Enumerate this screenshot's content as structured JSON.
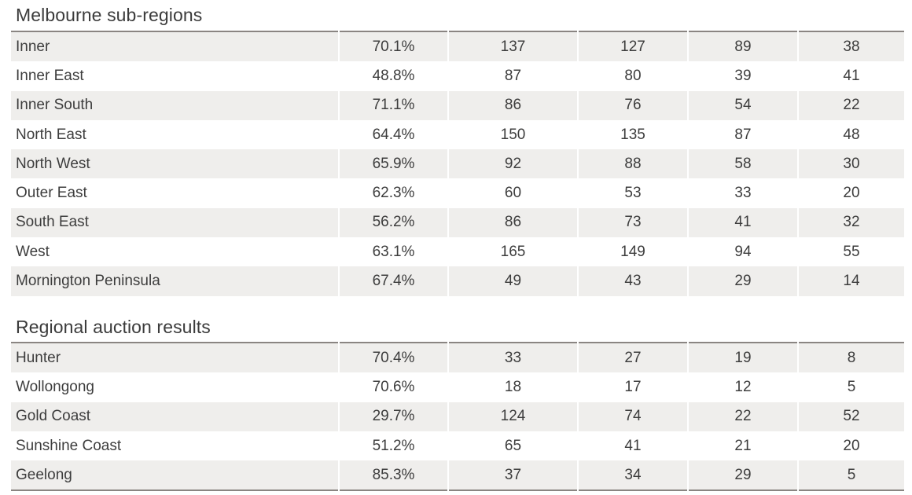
{
  "melbourne": {
    "title": "Melbourne sub-regions",
    "rows": [
      {
        "name": "Inner",
        "pct": "70.1%",
        "v1": "137",
        "v2": "127",
        "v3": "89",
        "v4": "38"
      },
      {
        "name": "Inner East",
        "pct": "48.8%",
        "v1": "87",
        "v2": "80",
        "v3": "39",
        "v4": "41"
      },
      {
        "name": "Inner South",
        "pct": "71.1%",
        "v1": "86",
        "v2": "76",
        "v3": "54",
        "v4": "22"
      },
      {
        "name": "North East",
        "pct": "64.4%",
        "v1": "150",
        "v2": "135",
        "v3": "87",
        "v4": "48"
      },
      {
        "name": "North West",
        "pct": "65.9%",
        "v1": "92",
        "v2": "88",
        "v3": "58",
        "v4": "30"
      },
      {
        "name": "Outer East",
        "pct": "62.3%",
        "v1": "60",
        "v2": "53",
        "v3": "33",
        "v4": "20"
      },
      {
        "name": "South East",
        "pct": "56.2%",
        "v1": "86",
        "v2": "73",
        "v3": "41",
        "v4": "32"
      },
      {
        "name": "West",
        "pct": "63.1%",
        "v1": "165",
        "v2": "149",
        "v3": "94",
        "v4": "55"
      },
      {
        "name": "Mornington Peninsula",
        "pct": "67.4%",
        "v1": "49",
        "v2": "43",
        "v3": "29",
        "v4": "14"
      }
    ]
  },
  "regional": {
    "title": "Regional auction results",
    "rows": [
      {
        "name": "Hunter",
        "pct": "70.4%",
        "v1": "33",
        "v2": "27",
        "v3": "19",
        "v4": "8"
      },
      {
        "name": "Wollongong",
        "pct": "70.6%",
        "v1": "18",
        "v2": "17",
        "v3": "12",
        "v4": "5"
      },
      {
        "name": "Gold Coast",
        "pct": "29.7%",
        "v1": "124",
        "v2": "74",
        "v3": "22",
        "v4": "52"
      },
      {
        "name": "Sunshine Coast",
        "pct": "51.2%",
        "v1": "65",
        "v2": "41",
        "v3": "21",
        "v4": "20"
      },
      {
        "name": "Geelong",
        "pct": "85.3%",
        "v1": "37",
        "v2": "34",
        "v3": "29",
        "v4": "5"
      }
    ]
  },
  "colors": {
    "row_shade": "#efeeec",
    "rule": "#8a8582",
    "text": "#3d3d3d"
  }
}
